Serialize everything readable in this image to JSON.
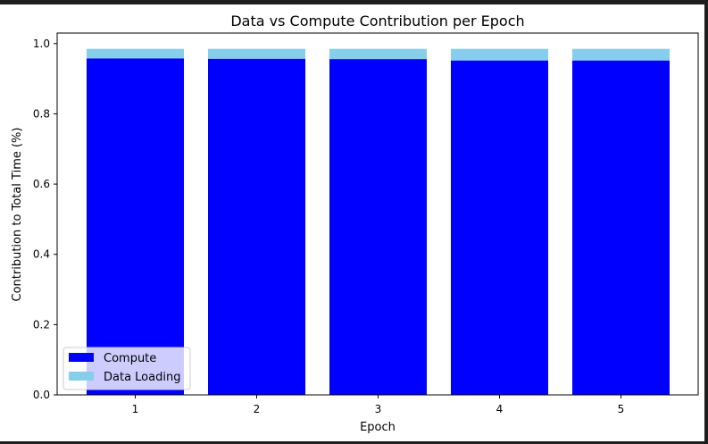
{
  "chart_data": {
    "type": "bar",
    "stacked": true,
    "title": "Data vs Compute Contribution per Epoch",
    "xlabel": "Epoch",
    "ylabel": "Contribution to Total Time (%)",
    "categories": [
      "1",
      "2",
      "3",
      "4",
      "5"
    ],
    "ylim": [
      0,
      1.03
    ],
    "yticks": [
      "0.0",
      "0.2",
      "0.4",
      "0.6",
      "0.8",
      "1.0"
    ],
    "grid": false,
    "legend_position": "lower-left",
    "series": [
      {
        "name": "Compute",
        "color": "#0000ff",
        "values": [
          0.958,
          0.957,
          0.956,
          0.952,
          0.952
        ]
      },
      {
        "name": "Data Loading",
        "color": "#87ceeb",
        "values": [
          0.027,
          0.028,
          0.029,
          0.033,
          0.033
        ]
      }
    ]
  }
}
